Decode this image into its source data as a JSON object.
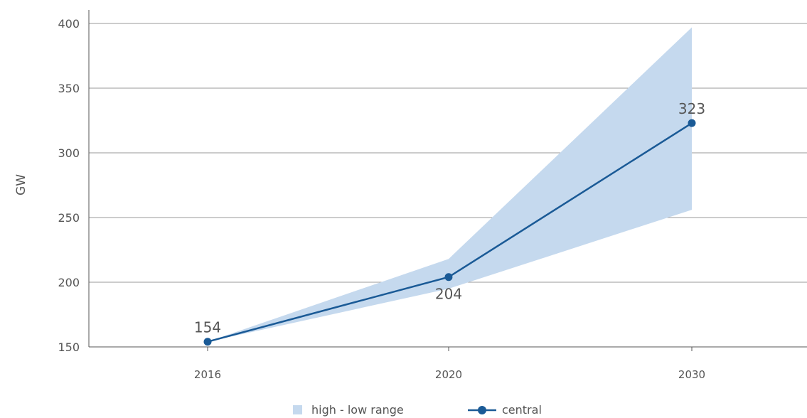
{
  "chart_data": {
    "type": "line",
    "x": [
      "2016",
      "2020",
      "2030"
    ],
    "ylabel": "GW",
    "xlabel": "",
    "ylim": [
      150,
      400
    ],
    "yticks": [
      150,
      200,
      250,
      300,
      350,
      400
    ],
    "grid": "horizontal",
    "legend_position": "bottom-center",
    "colors": {
      "central": "#1a5a96",
      "range": "#c5d9ee",
      "grid": "#999999",
      "text": "#555555"
    },
    "series": [
      {
        "name": "central",
        "values": [
          154,
          204,
          323
        ],
        "data_labels": [
          "154",
          "204",
          "323"
        ]
      }
    ],
    "range": {
      "name": "high - low range",
      "high": [
        154,
        218,
        397
      ],
      "low": [
        154,
        195,
        256
      ]
    },
    "legend": [
      {
        "label": "high - low range",
        "kind": "area"
      },
      {
        "label": "central",
        "kind": "line-marker"
      }
    ]
  }
}
